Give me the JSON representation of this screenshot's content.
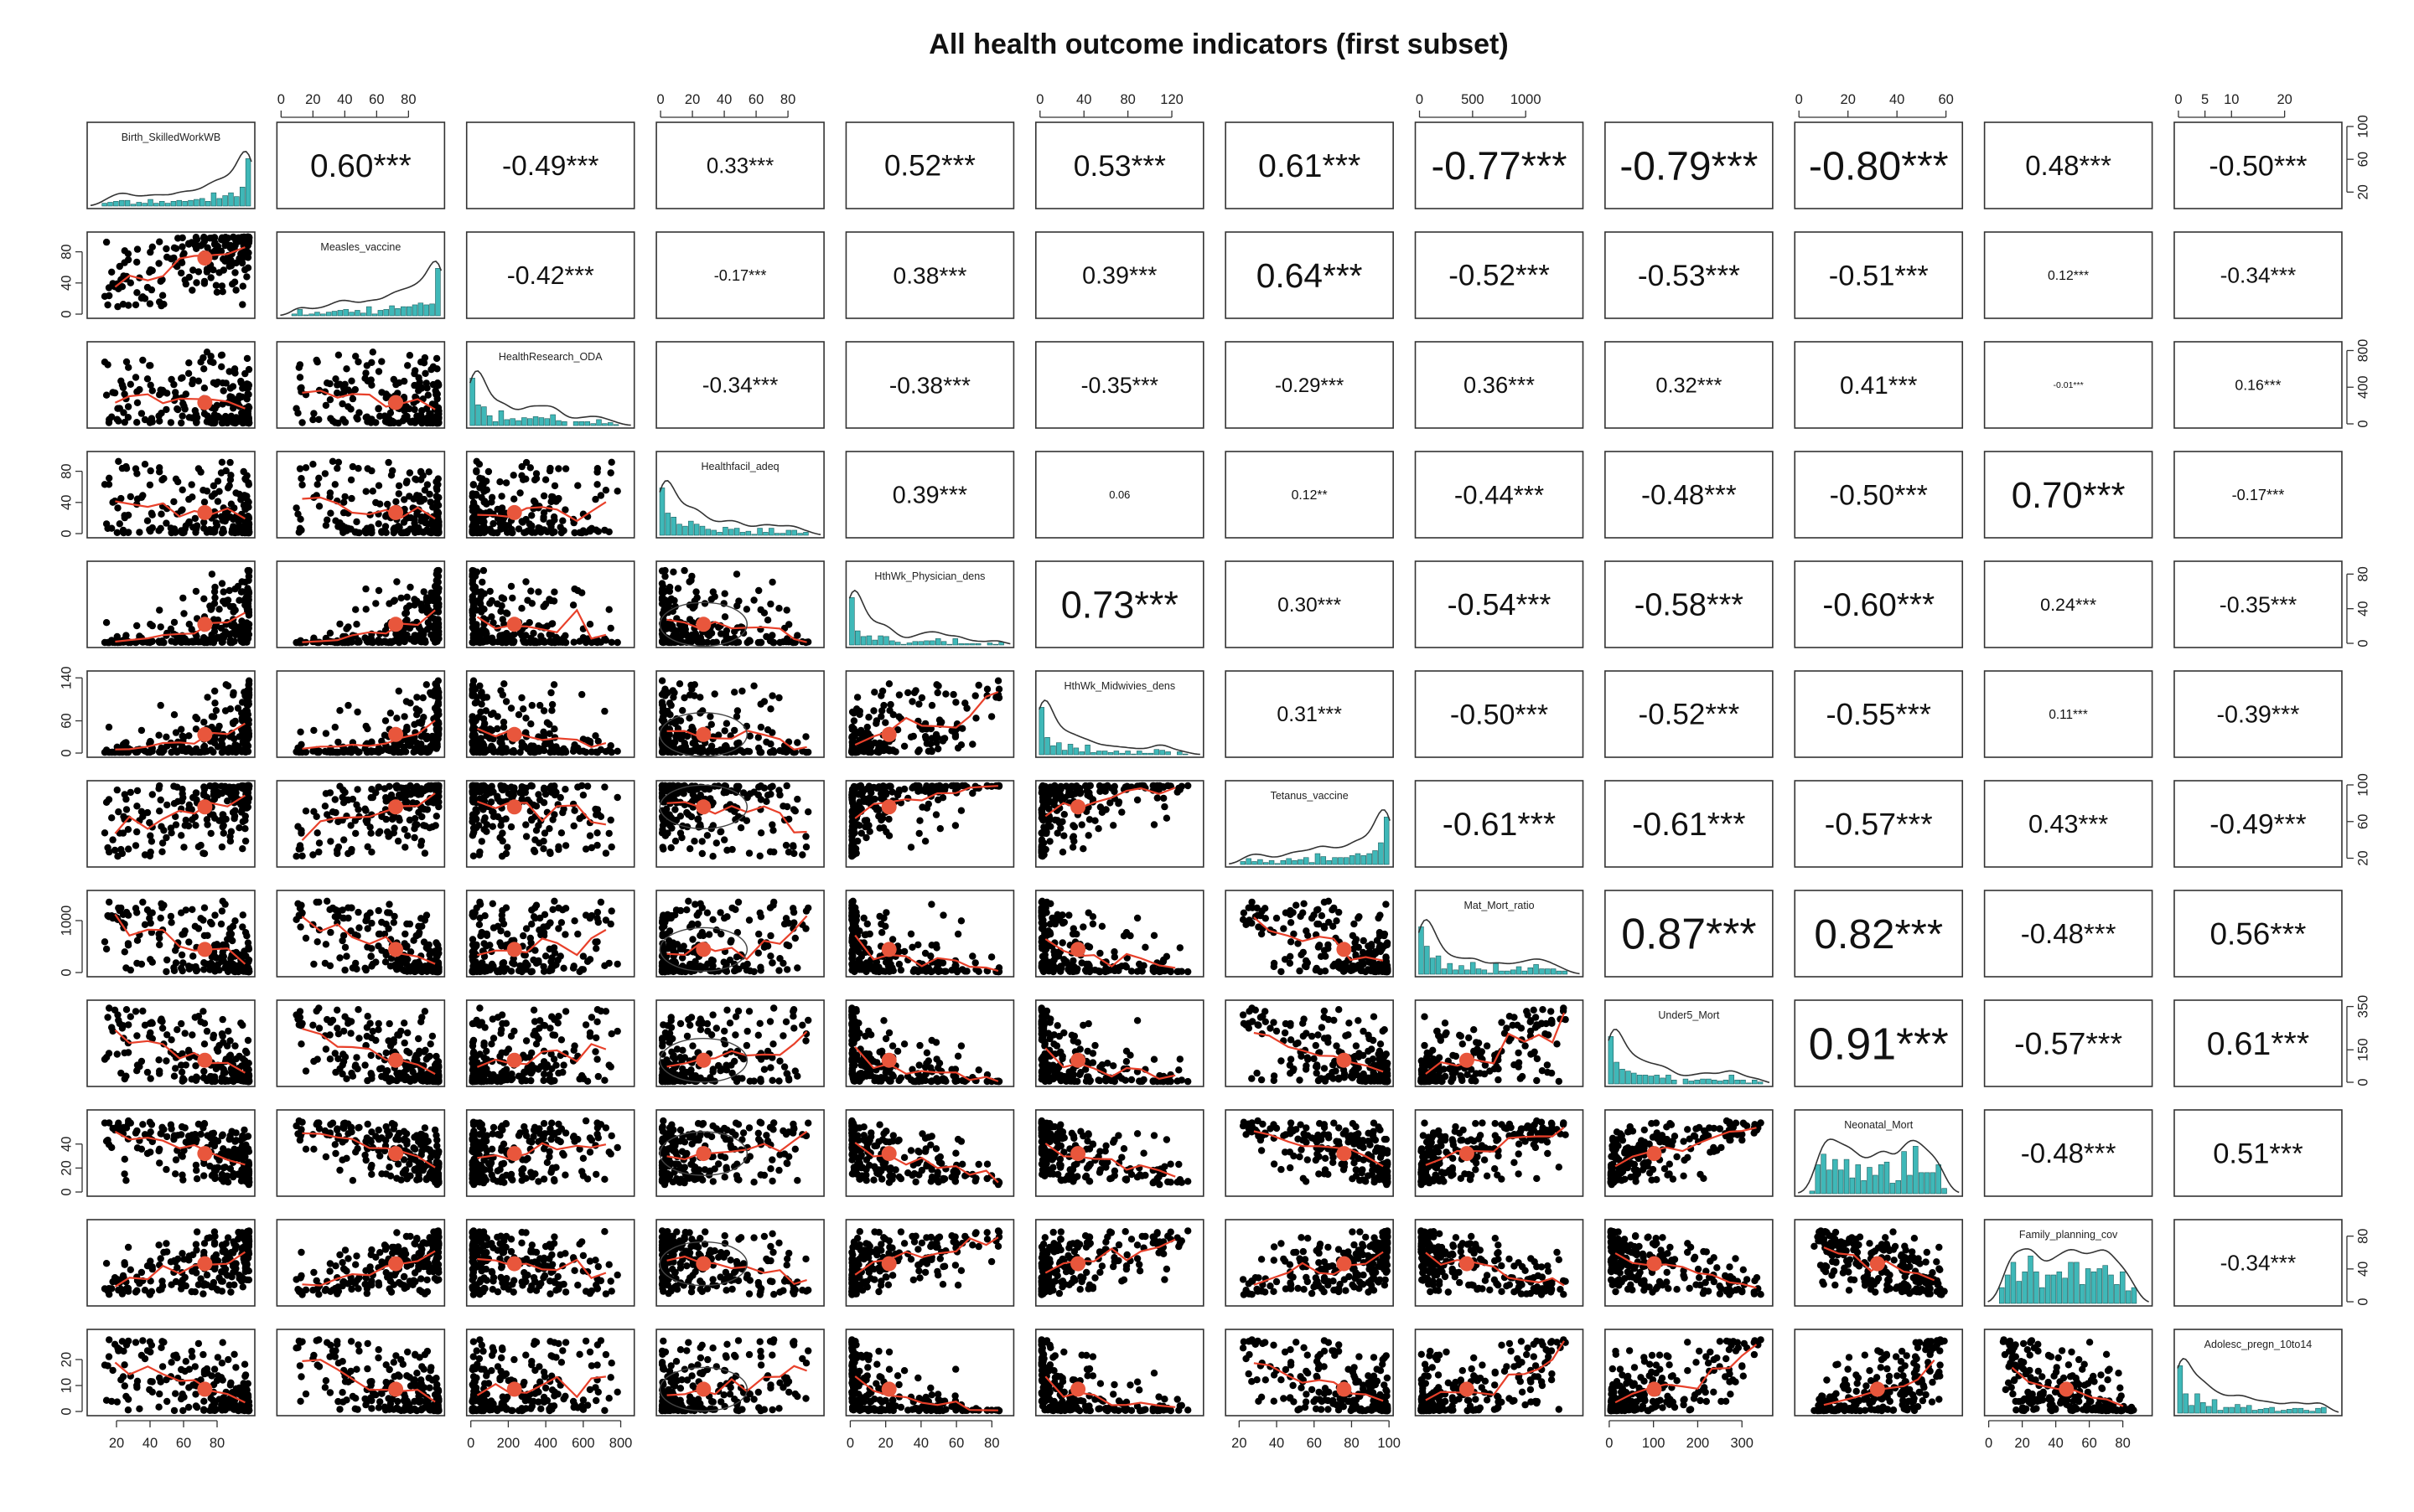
{
  "chart_data": {
    "type": "scatter",
    "subtype": "correlation-matrix",
    "title": "All health outcome indicators (first subset)",
    "variables": [
      "Birth_SkilledWorkWB",
      "Measles_vaccine",
      "HealthResearch_ODA",
      "Healthfacil_adeq",
      "HthWk_Physician_dens",
      "HthWk_Midwivies_dens",
      "Tetanus_vaccine",
      "Mat_Mort_ratio",
      "Under5_Mort",
      "Neonatal_Mort",
      "Family_planning_cov",
      "Adolesc_pregn_10to14"
    ],
    "ranges": [
      [
        5,
        100
      ],
      [
        0,
        100
      ],
      [
        0,
        850
      ],
      [
        0,
        100
      ],
      [
        0,
        90
      ],
      [
        0,
        145
      ],
      [
        15,
        100
      ],
      [
        0,
        1500
      ],
      [
        0,
        360
      ],
      [
        0,
        65
      ],
      [
        0,
        95
      ],
      [
        0,
        30
      ]
    ],
    "tick_labels": [
      [
        "20",
        "40",
        "60",
        "80"
      ],
      [
        "0",
        "20",
        "40",
        "60",
        "80"
      ],
      [
        "0",
        "200",
        "400",
        "600",
        "800"
      ],
      [
        "0",
        "20",
        "40",
        "60",
        "80"
      ],
      [
        "0",
        "20",
        "40",
        "60",
        "80"
      ],
      [
        "0",
        "40",
        "80",
        "120"
      ],
      [
        "20",
        "40",
        "60",
        "80",
        "100"
      ],
      [
        "0",
        "500",
        "1000"
      ],
      [
        "0",
        "100",
        "200",
        "300"
      ],
      [
        "0",
        "20",
        "40",
        "60"
      ],
      [
        "0",
        "20",
        "40",
        "60",
        "80"
      ],
      [
        "0",
        "5",
        "10",
        "20"
      ]
    ],
    "right_tick_labels": [
      [
        "20",
        "60",
        "100"
      ],
      [
        "0",
        "400",
        "800"
      ],
      [
        "0",
        "40",
        "80"
      ],
      [
        "20",
        "60",
        "100"
      ],
      [
        "0",
        "150",
        "350"
      ],
      [
        "0",
        "40",
        "80"
      ]
    ],
    "left_tick_labels": [
      [
        "0",
        "40",
        "80"
      ],
      [
        "0",
        "40",
        "80"
      ],
      [
        "0",
        "60",
        "140"
      ],
      [
        "0",
        "1000"
      ],
      [
        "0",
        "20",
        "40"
      ],
      [
        "0",
        "10",
        "20"
      ]
    ],
    "correlations": [
      {
        "pair": [
          "Birth_SkilledWorkWB",
          "Measles_vaccine"
        ],
        "r": "0.60",
        "sig": "***"
      },
      {
        "pair": [
          "Birth_SkilledWorkWB",
          "HealthResearch_ODA"
        ],
        "r": "-0.49",
        "sig": "***"
      },
      {
        "pair": [
          "Birth_SkilledWorkWB",
          "Healthfacil_adeq"
        ],
        "r": "0.33",
        "sig": "***"
      },
      {
        "pair": [
          "Birth_SkilledWorkWB",
          "HthWk_Physician_dens"
        ],
        "r": "0.52",
        "sig": "***"
      },
      {
        "pair": [
          "Birth_SkilledWorkWB",
          "HthWk_Midwivies_dens"
        ],
        "r": "0.53",
        "sig": "***"
      },
      {
        "pair": [
          "Birth_SkilledWorkWB",
          "Tetanus_vaccine"
        ],
        "r": "0.61",
        "sig": "***"
      },
      {
        "pair": [
          "Birth_SkilledWorkWB",
          "Mat_Mort_ratio"
        ],
        "r": "-0.77",
        "sig": "***"
      },
      {
        "pair": [
          "Birth_SkilledWorkWB",
          "Under5_Mort"
        ],
        "r": "-0.79",
        "sig": "***"
      },
      {
        "pair": [
          "Birth_SkilledWorkWB",
          "Neonatal_Mort"
        ],
        "r": "-0.80",
        "sig": "***"
      },
      {
        "pair": [
          "Birth_SkilledWorkWB",
          "Family_planning_cov"
        ],
        "r": "0.48",
        "sig": "***"
      },
      {
        "pair": [
          "Birth_SkilledWorkWB",
          "Adolesc_pregn_10to14"
        ],
        "r": "-0.50",
        "sig": "***"
      },
      {
        "pair": [
          "Measles_vaccine",
          "HealthResearch_ODA"
        ],
        "r": "-0.42",
        "sig": "***"
      },
      {
        "pair": [
          "Measles_vaccine",
          "Healthfacil_adeq"
        ],
        "r": "-0.17",
        "sig": "***"
      },
      {
        "pair": [
          "Measles_vaccine",
          "HthWk_Physician_dens"
        ],
        "r": "0.38",
        "sig": "***"
      },
      {
        "pair": [
          "Measles_vaccine",
          "HthWk_Midwivies_dens"
        ],
        "r": "0.39",
        "sig": "***"
      },
      {
        "pair": [
          "Measles_vaccine",
          "Tetanus_vaccine"
        ],
        "r": "0.64",
        "sig": "***"
      },
      {
        "pair": [
          "Measles_vaccine",
          "Mat_Mort_ratio"
        ],
        "r": "-0.52",
        "sig": "***"
      },
      {
        "pair": [
          "Measles_vaccine",
          "Under5_Mort"
        ],
        "r": "-0.53",
        "sig": "***"
      },
      {
        "pair": [
          "Measles_vaccine",
          "Neonatal_Mort"
        ],
        "r": "-0.51",
        "sig": "***"
      },
      {
        "pair": [
          "Measles_vaccine",
          "Family_planning_cov"
        ],
        "r": "0.12",
        "sig": "***"
      },
      {
        "pair": [
          "Measles_vaccine",
          "Adolesc_pregn_10to14"
        ],
        "r": "-0.34",
        "sig": "***"
      },
      {
        "pair": [
          "HealthResearch_ODA",
          "Healthfacil_adeq"
        ],
        "r": "-0.34",
        "sig": "***"
      },
      {
        "pair": [
          "HealthResearch_ODA",
          "HthWk_Physician_dens"
        ],
        "r": "-0.38",
        "sig": "***"
      },
      {
        "pair": [
          "HealthResearch_ODA",
          "HthWk_Midwivies_dens"
        ],
        "r": "-0.35",
        "sig": "***"
      },
      {
        "pair": [
          "HealthResearch_ODA",
          "Tetanus_vaccine"
        ],
        "r": "-0.29",
        "sig": "***"
      },
      {
        "pair": [
          "HealthResearch_ODA",
          "Mat_Mort_ratio"
        ],
        "r": "0.36",
        "sig": "***"
      },
      {
        "pair": [
          "HealthResearch_ODA",
          "Under5_Mort"
        ],
        "r": "0.32",
        "sig": "***"
      },
      {
        "pair": [
          "HealthResearch_ODA",
          "Neonatal_Mort"
        ],
        "r": "0.41",
        "sig": "***"
      },
      {
        "pair": [
          "HealthResearch_ODA",
          "Family_planning_cov"
        ],
        "r": "-0.01",
        "sig": "***"
      },
      {
        "pair": [
          "HealthResearch_ODA",
          "Adolesc_pregn_10to14"
        ],
        "r": "0.16",
        "sig": "***"
      },
      {
        "pair": [
          "Healthfacil_adeq",
          "HthWk_Physician_dens"
        ],
        "r": "0.39",
        "sig": "***"
      },
      {
        "pair": [
          "Healthfacil_adeq",
          "HthWk_Midwivies_dens"
        ],
        "r": "0.06",
        "sig": ""
      },
      {
        "pair": [
          "Healthfacil_adeq",
          "Tetanus_vaccine"
        ],
        "r": "0.12",
        "sig": "**"
      },
      {
        "pair": [
          "Healthfacil_adeq",
          "Mat_Mort_ratio"
        ],
        "r": "-0.44",
        "sig": "***"
      },
      {
        "pair": [
          "Healthfacil_adeq",
          "Under5_Mort"
        ],
        "r": "-0.48",
        "sig": "***"
      },
      {
        "pair": [
          "Healthfacil_adeq",
          "Neonatal_Mort"
        ],
        "r": "-0.50",
        "sig": "***"
      },
      {
        "pair": [
          "Healthfacil_adeq",
          "Family_planning_cov"
        ],
        "r": "0.70",
        "sig": "***"
      },
      {
        "pair": [
          "Healthfacil_adeq",
          "Adolesc_pregn_10to14"
        ],
        "r": "-0.17",
        "sig": "***"
      },
      {
        "pair": [
          "HthWk_Physician_dens",
          "HthWk_Midwivies_dens"
        ],
        "r": "0.73",
        "sig": "***"
      },
      {
        "pair": [
          "HthWk_Physician_dens",
          "Tetanus_vaccine"
        ],
        "r": "0.30",
        "sig": "***"
      },
      {
        "pair": [
          "HthWk_Physician_dens",
          "Mat_Mort_ratio"
        ],
        "r": "-0.54",
        "sig": "***"
      },
      {
        "pair": [
          "HthWk_Physician_dens",
          "Under5_Mort"
        ],
        "r": "-0.58",
        "sig": "***"
      },
      {
        "pair": [
          "HthWk_Physician_dens",
          "Neonatal_Mort"
        ],
        "r": "-0.60",
        "sig": "***"
      },
      {
        "pair": [
          "HthWk_Physician_dens",
          "Family_planning_cov"
        ],
        "r": "0.24",
        "sig": "***"
      },
      {
        "pair": [
          "HthWk_Physician_dens",
          "Adolesc_pregn_10to14"
        ],
        "r": "-0.35",
        "sig": "***"
      },
      {
        "pair": [
          "HthWk_Midwivies_dens",
          "Tetanus_vaccine"
        ],
        "r": "0.31",
        "sig": "***"
      },
      {
        "pair": [
          "HthWk_Midwivies_dens",
          "Mat_Mort_ratio"
        ],
        "r": "-0.50",
        "sig": "***"
      },
      {
        "pair": [
          "HthWk_Midwivies_dens",
          "Under5_Mort"
        ],
        "r": "-0.52",
        "sig": "***"
      },
      {
        "pair": [
          "HthWk_Midwivies_dens",
          "Neonatal_Mort"
        ],
        "r": "-0.55",
        "sig": "***"
      },
      {
        "pair": [
          "HthWk_Midwivies_dens",
          "Family_planning_cov"
        ],
        "r": "0.11",
        "sig": "***"
      },
      {
        "pair": [
          "HthWk_Midwivies_dens",
          "Adolesc_pregn_10to14"
        ],
        "r": "-0.39",
        "sig": "***"
      },
      {
        "pair": [
          "Tetanus_vaccine",
          "Mat_Mort_ratio"
        ],
        "r": "-0.61",
        "sig": "***"
      },
      {
        "pair": [
          "Tetanus_vaccine",
          "Under5_Mort"
        ],
        "r": "-0.61",
        "sig": "***"
      },
      {
        "pair": [
          "Tetanus_vaccine",
          "Neonatal_Mort"
        ],
        "r": "-0.57",
        "sig": "***"
      },
      {
        "pair": [
          "Tetanus_vaccine",
          "Family_planning_cov"
        ],
        "r": "0.43",
        "sig": "***"
      },
      {
        "pair": [
          "Tetanus_vaccine",
          "Adolesc_pregn_10to14"
        ],
        "r": "-0.49",
        "sig": "***"
      },
      {
        "pair": [
          "Mat_Mort_ratio",
          "Under5_Mort"
        ],
        "r": "0.87",
        "sig": "***"
      },
      {
        "pair": [
          "Mat_Mort_ratio",
          "Neonatal_Mort"
        ],
        "r": "0.82",
        "sig": "***"
      },
      {
        "pair": [
          "Mat_Mort_ratio",
          "Family_planning_cov"
        ],
        "r": "-0.48",
        "sig": "***"
      },
      {
        "pair": [
          "Mat_Mort_ratio",
          "Adolesc_pregn_10to14"
        ],
        "r": "0.56",
        "sig": "***"
      },
      {
        "pair": [
          "Under5_Mort",
          "Neonatal_Mort"
        ],
        "r": "0.91",
        "sig": "***"
      },
      {
        "pair": [
          "Under5_Mort",
          "Family_planning_cov"
        ],
        "r": "-0.57",
        "sig": "***"
      },
      {
        "pair": [
          "Under5_Mort",
          "Adolesc_pregn_10to14"
        ],
        "r": "0.61",
        "sig": "***"
      },
      {
        "pair": [
          "Neonatal_Mort",
          "Family_planning_cov"
        ],
        "r": "-0.48",
        "sig": "***"
      },
      {
        "pair": [
          "Neonatal_Mort",
          "Adolesc_pregn_10to14"
        ],
        "r": "0.51",
        "sig": "***"
      },
      {
        "pair": [
          "Family_planning_cov",
          "Adolesc_pregn_10to14"
        ],
        "r": "-0.34",
        "sig": "***"
      }
    ],
    "colors": {
      "points": "#000000",
      "smoother": "#e8402a",
      "centroid": "#e8563c",
      "histogram": "#3fb8b8",
      "density": "#333333",
      "panel_border": "#333333"
    },
    "grid": false,
    "legend": "none"
  }
}
